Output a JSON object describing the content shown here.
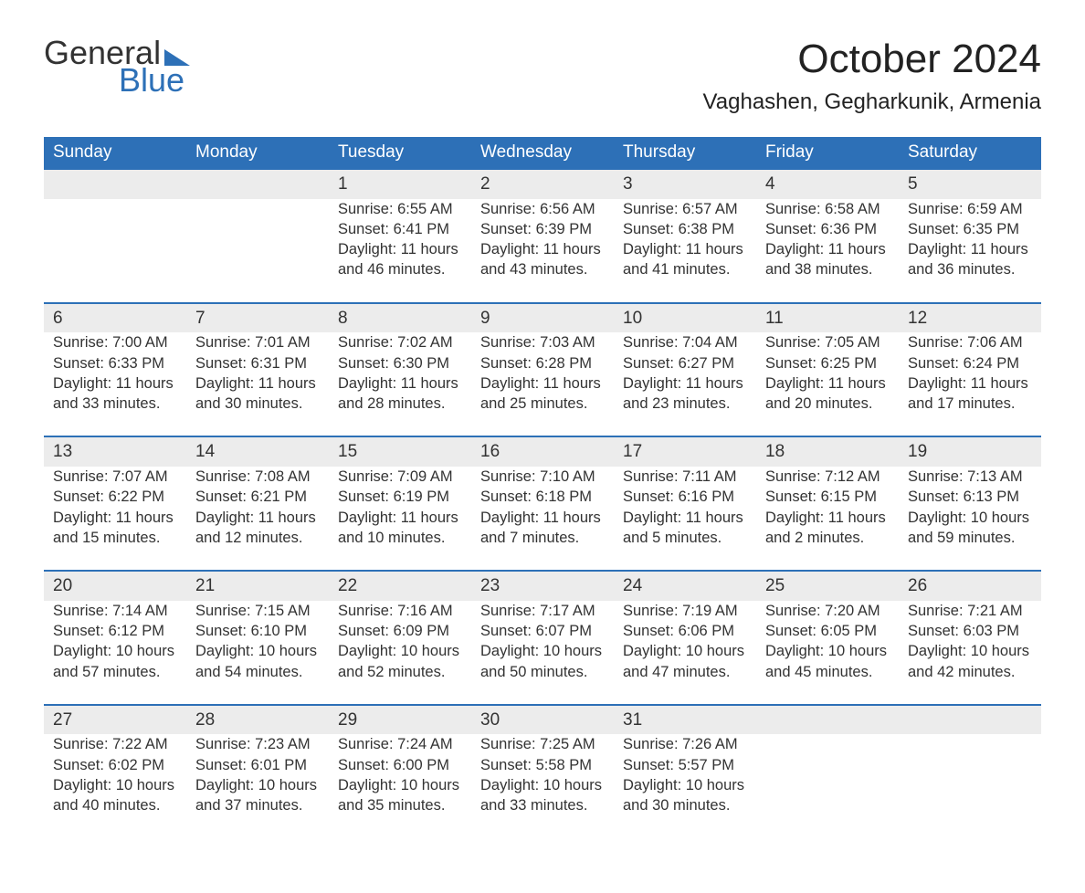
{
  "logo": {
    "word1": "General",
    "word2": "Blue"
  },
  "title": "October 2024",
  "location": "Vaghashen, Gegharkunik, Armenia",
  "colors": {
    "header_bg": "#2d70b7",
    "header_text": "#ffffff",
    "daynum_bg": "#ececec",
    "daynum_border": "#2d70b7",
    "body_text": "#333333",
    "page_bg": "#ffffff",
    "logo_blue": "#2d70b7"
  },
  "fonts": {
    "title_size_pt": 33,
    "location_size_pt": 18,
    "header_size_pt": 14,
    "cell_size_pt": 12
  },
  "weekdays": [
    "Sunday",
    "Monday",
    "Tuesday",
    "Wednesday",
    "Thursday",
    "Friday",
    "Saturday"
  ],
  "labels": {
    "sunrise": "Sunrise:",
    "sunset": "Sunset:",
    "daylight": "Daylight:"
  },
  "weeks": [
    [
      null,
      null,
      {
        "d": "1",
        "sr": "6:55 AM",
        "ss": "6:41 PM",
        "dl": "11 hours and 46 minutes."
      },
      {
        "d": "2",
        "sr": "6:56 AM",
        "ss": "6:39 PM",
        "dl": "11 hours and 43 minutes."
      },
      {
        "d": "3",
        "sr": "6:57 AM",
        "ss": "6:38 PM",
        "dl": "11 hours and 41 minutes."
      },
      {
        "d": "4",
        "sr": "6:58 AM",
        "ss": "6:36 PM",
        "dl": "11 hours and 38 minutes."
      },
      {
        "d": "5",
        "sr": "6:59 AM",
        "ss": "6:35 PM",
        "dl": "11 hours and 36 minutes."
      }
    ],
    [
      {
        "d": "6",
        "sr": "7:00 AM",
        "ss": "6:33 PM",
        "dl": "11 hours and 33 minutes."
      },
      {
        "d": "7",
        "sr": "7:01 AM",
        "ss": "6:31 PM",
        "dl": "11 hours and 30 minutes."
      },
      {
        "d": "8",
        "sr": "7:02 AM",
        "ss": "6:30 PM",
        "dl": "11 hours and 28 minutes."
      },
      {
        "d": "9",
        "sr": "7:03 AM",
        "ss": "6:28 PM",
        "dl": "11 hours and 25 minutes."
      },
      {
        "d": "10",
        "sr": "7:04 AM",
        "ss": "6:27 PM",
        "dl": "11 hours and 23 minutes."
      },
      {
        "d": "11",
        "sr": "7:05 AM",
        "ss": "6:25 PM",
        "dl": "11 hours and 20 minutes."
      },
      {
        "d": "12",
        "sr": "7:06 AM",
        "ss": "6:24 PM",
        "dl": "11 hours and 17 minutes."
      }
    ],
    [
      {
        "d": "13",
        "sr": "7:07 AM",
        "ss": "6:22 PM",
        "dl": "11 hours and 15 minutes."
      },
      {
        "d": "14",
        "sr": "7:08 AM",
        "ss": "6:21 PM",
        "dl": "11 hours and 12 minutes."
      },
      {
        "d": "15",
        "sr": "7:09 AM",
        "ss": "6:19 PM",
        "dl": "11 hours and 10 minutes."
      },
      {
        "d": "16",
        "sr": "7:10 AM",
        "ss": "6:18 PM",
        "dl": "11 hours and 7 minutes."
      },
      {
        "d": "17",
        "sr": "7:11 AM",
        "ss": "6:16 PM",
        "dl": "11 hours and 5 minutes."
      },
      {
        "d": "18",
        "sr": "7:12 AM",
        "ss": "6:15 PM",
        "dl": "11 hours and 2 minutes."
      },
      {
        "d": "19",
        "sr": "7:13 AM",
        "ss": "6:13 PM",
        "dl": "10 hours and 59 minutes."
      }
    ],
    [
      {
        "d": "20",
        "sr": "7:14 AM",
        "ss": "6:12 PM",
        "dl": "10 hours and 57 minutes."
      },
      {
        "d": "21",
        "sr": "7:15 AM",
        "ss": "6:10 PM",
        "dl": "10 hours and 54 minutes."
      },
      {
        "d": "22",
        "sr": "7:16 AM",
        "ss": "6:09 PM",
        "dl": "10 hours and 52 minutes."
      },
      {
        "d": "23",
        "sr": "7:17 AM",
        "ss": "6:07 PM",
        "dl": "10 hours and 50 minutes."
      },
      {
        "d": "24",
        "sr": "7:19 AM",
        "ss": "6:06 PM",
        "dl": "10 hours and 47 minutes."
      },
      {
        "d": "25",
        "sr": "7:20 AM",
        "ss": "6:05 PM",
        "dl": "10 hours and 45 minutes."
      },
      {
        "d": "26",
        "sr": "7:21 AM",
        "ss": "6:03 PM",
        "dl": "10 hours and 42 minutes."
      }
    ],
    [
      {
        "d": "27",
        "sr": "7:22 AM",
        "ss": "6:02 PM",
        "dl": "10 hours and 40 minutes."
      },
      {
        "d": "28",
        "sr": "7:23 AM",
        "ss": "6:01 PM",
        "dl": "10 hours and 37 minutes."
      },
      {
        "d": "29",
        "sr": "7:24 AM",
        "ss": "6:00 PM",
        "dl": "10 hours and 35 minutes."
      },
      {
        "d": "30",
        "sr": "7:25 AM",
        "ss": "5:58 PM",
        "dl": "10 hours and 33 minutes."
      },
      {
        "d": "31",
        "sr": "7:26 AM",
        "ss": "5:57 PM",
        "dl": "10 hours and 30 minutes."
      },
      null,
      null
    ]
  ]
}
